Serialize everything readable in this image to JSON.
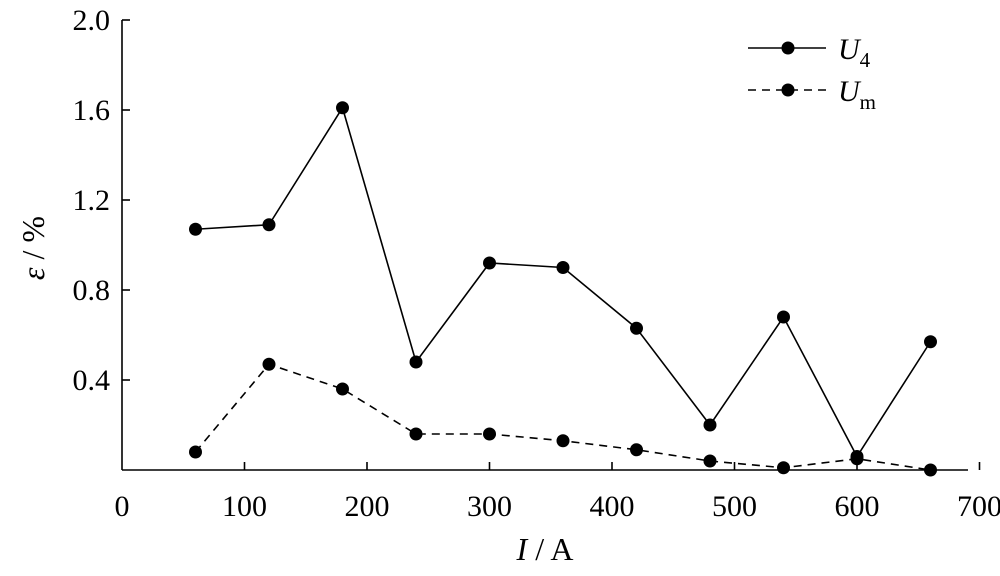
{
  "chart_data": {
    "type": "line",
    "title": "",
    "xlabel": {
      "symbol": "I",
      "unit": " / A"
    },
    "ylabel": {
      "symbol": "ε",
      "unit": " / %"
    },
    "xlim": [
      0,
      700
    ],
    "ylim": [
      0,
      2.0
    ],
    "x_ticks": [
      0,
      100,
      200,
      300,
      400,
      500,
      600,
      700
    ],
    "x_tick_labels": [
      "0",
      "100",
      "200",
      "300",
      "400",
      "500",
      "600",
      "700"
    ],
    "y_ticks": [
      0.4,
      0.8,
      1.2,
      1.6,
      2.0
    ],
    "y_tick_labels": [
      "0.4",
      "0.8",
      "1.2",
      "1.6",
      "2.0"
    ],
    "grid": false,
    "legend_position": "top-right",
    "x": [
      60,
      120,
      180,
      240,
      300,
      360,
      420,
      480,
      540,
      600,
      660
    ],
    "series": [
      {
        "name": "U",
        "subscript": "4",
        "line_style": "solid",
        "marker": "filled-circle",
        "values": [
          1.07,
          1.09,
          1.61,
          0.48,
          0.92,
          0.9,
          0.63,
          0.2,
          0.68,
          0.06,
          0.57
        ]
      },
      {
        "name": "U",
        "subscript": "m",
        "line_style": "dashed",
        "marker": "filled-circle",
        "values": [
          0.08,
          0.47,
          0.36,
          0.16,
          0.16,
          0.13,
          0.09,
          0.04,
          0.01,
          0.05,
          0.0
        ]
      }
    ],
    "colors": {
      "line": "#000000",
      "marker": "#000000",
      "background": "#ffffff"
    }
  }
}
